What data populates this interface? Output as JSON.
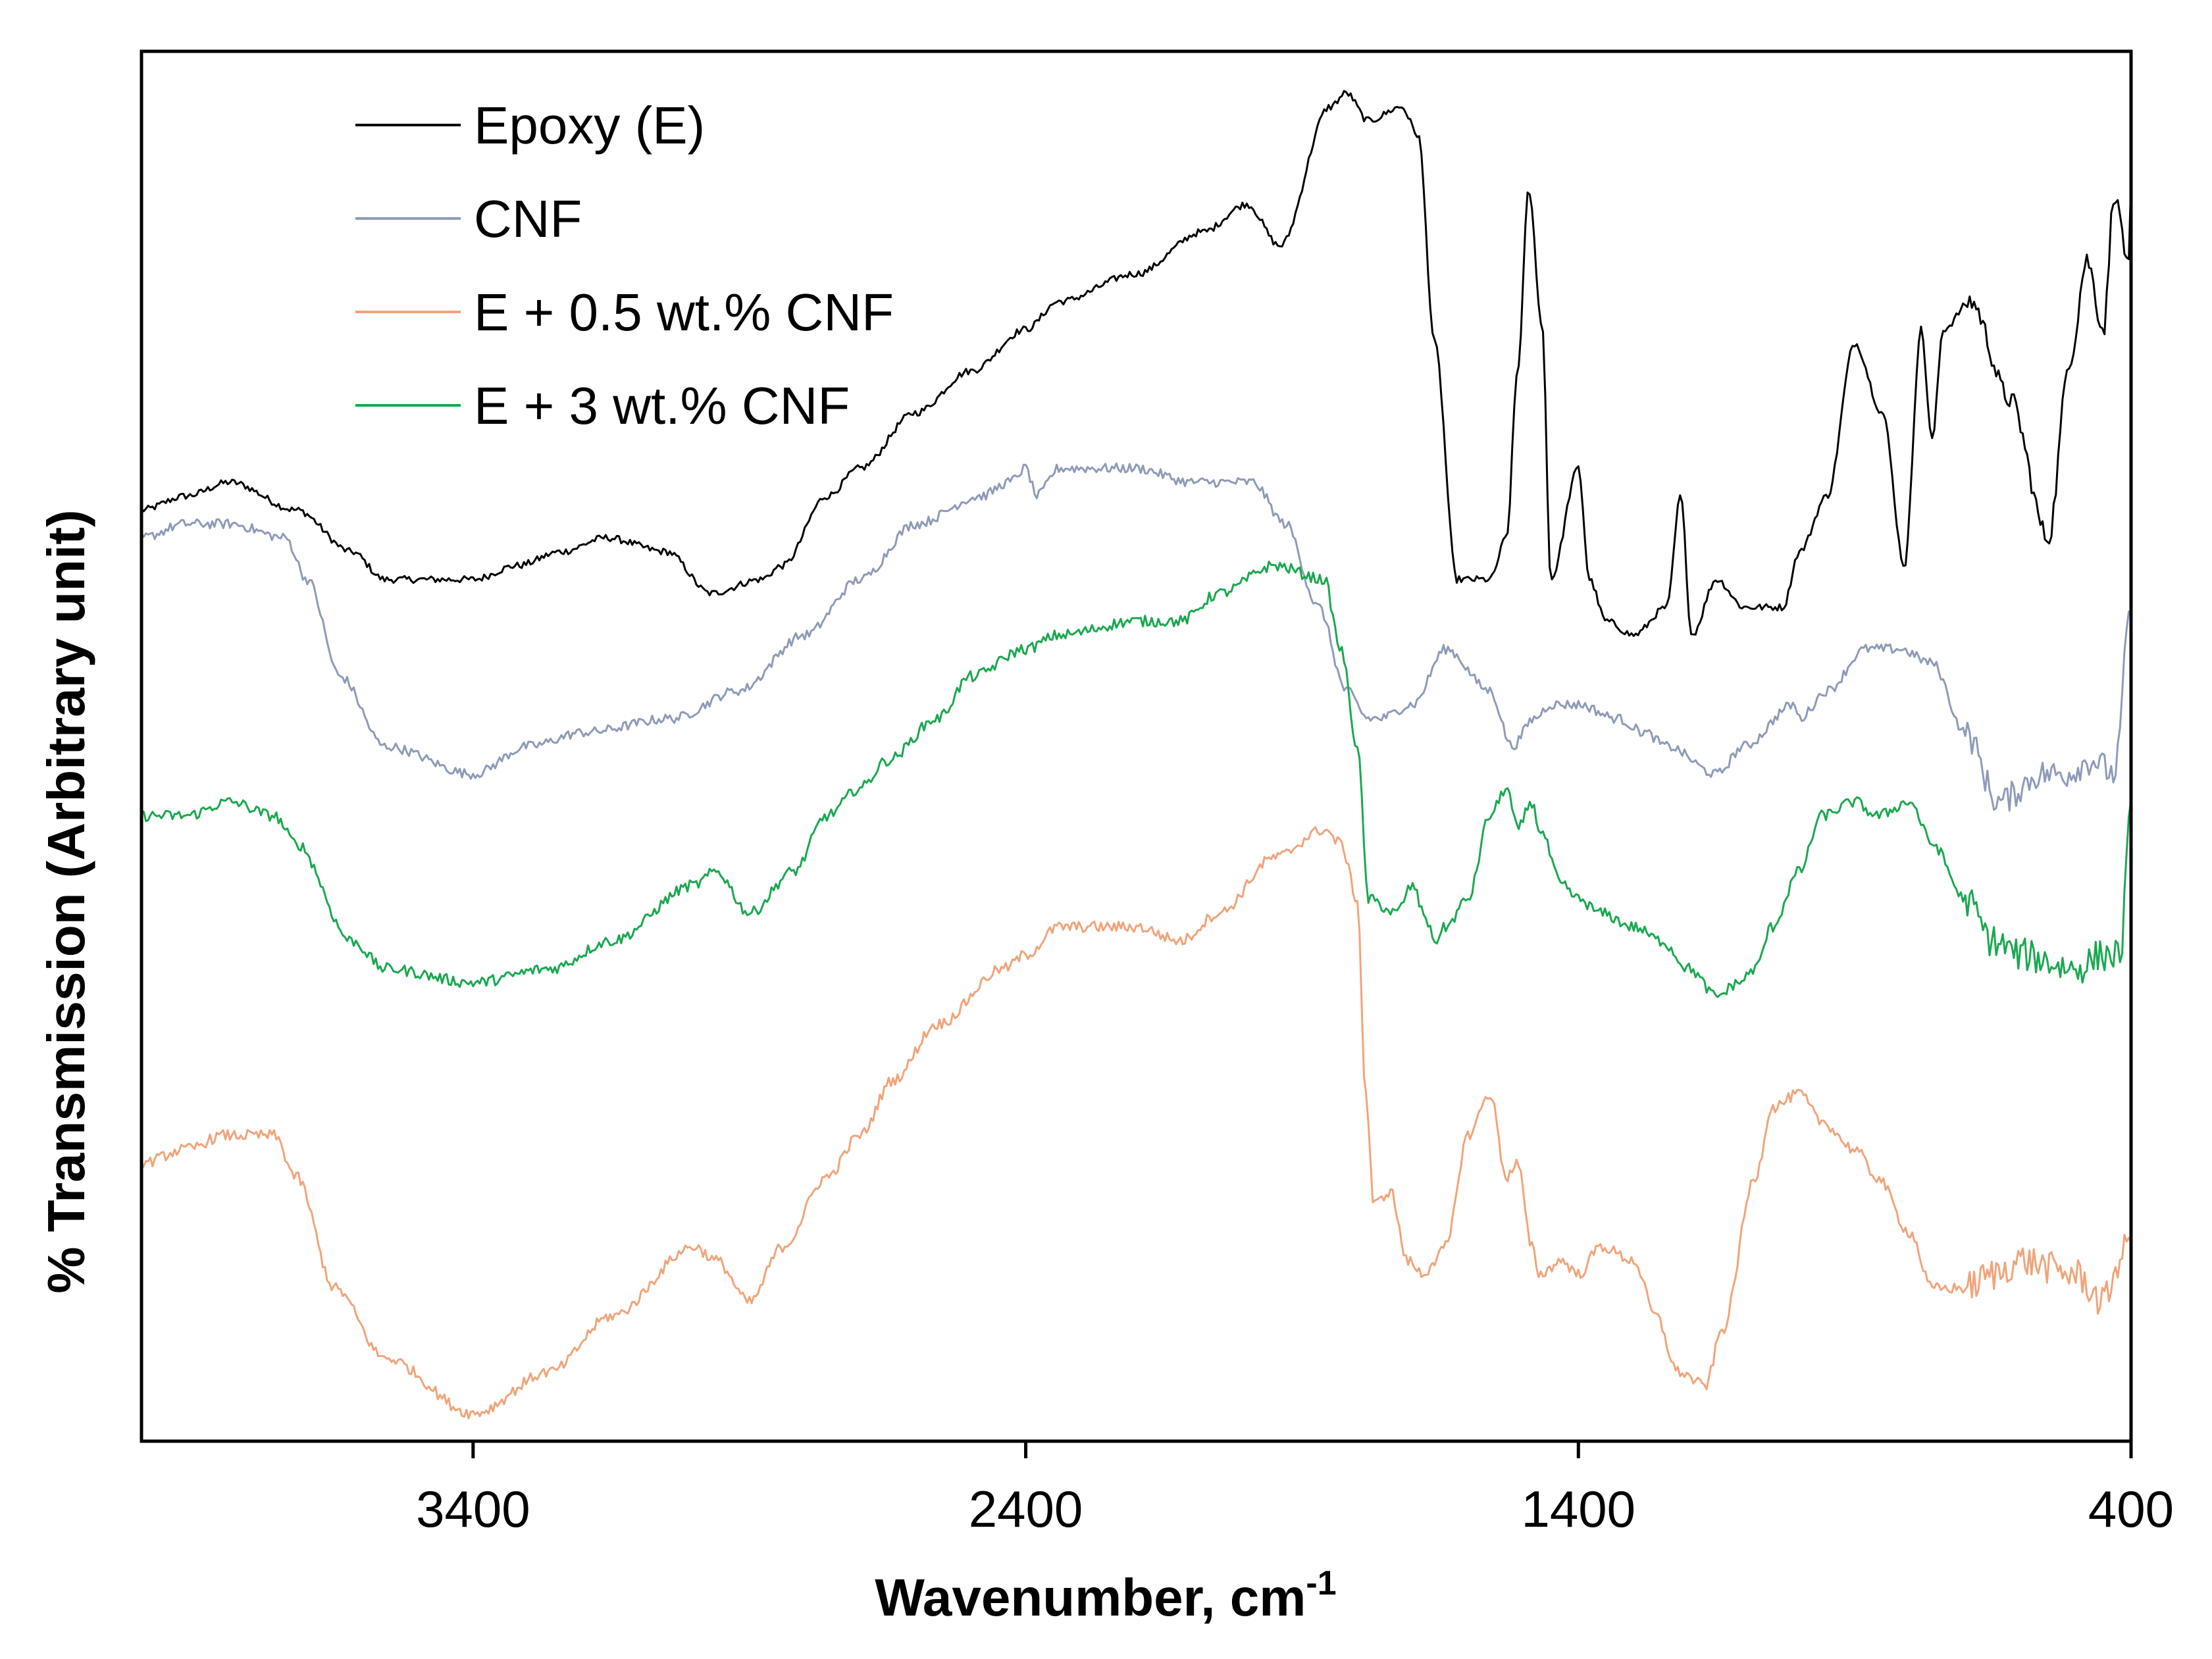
{
  "chart_data": {
    "type": "line",
    "title": "",
    "xlabel": "Wavenumber, cm",
    "xlabel_superscript": "-1",
    "ylabel": "% Transmission (Arbitrary unit)",
    "x_reversed": true,
    "xlim": [
      4000,
      400
    ],
    "ylim": [
      0,
      100
    ],
    "x_ticks": [
      3400,
      2400,
      1400,
      400
    ],
    "x_tick_labels": [
      "3400",
      "2400",
      "1400",
      "400"
    ],
    "y_ticks_shown": false,
    "grid": false,
    "legend_position": "top-left",
    "series": [
      {
        "name": "Epoxy (E)",
        "color": "#000000",
        "noise": 0.25,
        "x": [
          4000,
          3920,
          3840,
          3720,
          3620,
          3560,
          3480,
          3400,
          3320,
          3240,
          3160,
          3050,
          2970,
          2880,
          2840,
          2760,
          2700,
          2600,
          2500,
          2400,
          2340,
          2200,
          2080,
          2000,
          1940,
          1850,
          1820,
          1780,
          1720,
          1690,
          1660,
          1620,
          1560,
          1530,
          1510,
          1490,
          1465,
          1450,
          1400,
          1380,
          1350,
          1300,
          1240,
          1215,
          1195,
          1150,
          1100,
          1030,
          1000,
          950,
          900,
          850,
          810,
          780,
          760,
          740,
          690,
          620,
          550,
          510,
          480,
          450,
          430,
          420,
          405,
          400
        ],
        "y": [
          67,
          68,
          69,
          67,
          64,
          62,
          62,
          62,
          63,
          64,
          65,
          64,
          61,
          62,
          63,
          68,
          70,
          74,
          77,
          80,
          82,
          84,
          87,
          89,
          86,
          96,
          97,
          95,
          96,
          94,
          79,
          62,
          62,
          65,
          77,
          90,
          80,
          62,
          70,
          62,
          59,
          58,
          60,
          68,
          58,
          62,
          60,
          60,
          64,
          68,
          79,
          74,
          63,
          80,
          72,
          80,
          82,
          75,
          65,
          78,
          85,
          80,
          90,
          88,
          84,
          90
        ]
      },
      {
        "name": "CNF",
        "color": "#8e9bb8",
        "noise": 0.35,
        "x": [
          4000,
          3920,
          3840,
          3740,
          3700,
          3640,
          3560,
          3400,
          3300,
          3200,
          3040,
          2920,
          2800,
          2700,
          2600,
          2480,
          2430,
          2400,
          2380,
          2340,
          2300,
          2200,
          2100,
          1990,
          1930,
          1870,
          1820,
          1780,
          1760,
          1700,
          1640,
          1560,
          1520,
          1480,
          1450,
          1400,
          1330,
          1280,
          1240,
          1150,
          1100,
          1010,
          1000,
          950,
          880,
          820,
          760,
          700,
          640,
          560,
          520,
          470,
          430,
          400
        ],
        "y": [
          65,
          66,
          66,
          65,
          62,
          55,
          50,
          48,
          50,
          51,
          52,
          54,
          58,
          62,
          66,
          68,
          69,
          70,
          68,
          70,
          70,
          70,
          69,
          69,
          66,
          60,
          54,
          52,
          52,
          53,
          57,
          54,
          50,
          52,
          53,
          53,
          52,
          51,
          50,
          48,
          50,
          53,
          52,
          54,
          57,
          57,
          56,
          51,
          46,
          48,
          48,
          49,
          48,
          60
        ]
      },
      {
        "name": "E + 3 wt.% CNF",
        "color": "#1aa850",
        "noise": 0.4,
        "x": [
          4000,
          3920,
          3840,
          3760,
          3720,
          3620,
          3560,
          3400,
          3260,
          3150,
          3000,
          2960,
          2900,
          2820,
          2760,
          2700,
          2650,
          2560,
          2500,
          2400,
          2340,
          2200,
          2120,
          2050,
          1950,
          1860,
          1830,
          1800,
          1780,
          1730,
          1700,
          1680,
          1660,
          1640,
          1600,
          1560,
          1530,
          1510,
          1485,
          1470,
          1430,
          1400,
          1360,
          1300,
          1250,
          1200,
          1150,
          1110,
          1080,
          1050,
          1000,
          960,
          900,
          860,
          800,
          760,
          700,
          650,
          600,
          500,
          450,
          420,
          400
        ],
        "y": [
          45,
          45,
          46,
          45,
          43,
          36,
          34,
          33,
          34,
          36,
          40,
          41,
          38,
          41,
          45,
          47,
          49,
          52,
          55,
          57,
          58,
          59,
          59,
          61,
          63,
          62,
          57,
          50,
          39,
          38,
          40,
          38,
          36,
          37,
          39,
          45,
          47,
          44,
          46,
          44,
          40,
          39,
          38,
          37,
          36,
          34,
          32,
          33,
          34,
          37,
          41,
          45,
          46,
          45,
          46,
          43,
          39,
          36,
          35,
          34,
          35,
          35,
          45
        ]
      },
      {
        "name": "E + 0.5 wt.% CNF",
        "color": "#f0a47a",
        "noise": 0.4,
        "x": [
          4000,
          3920,
          3850,
          3760,
          3720,
          3650,
          3560,
          3400,
          3260,
          3150,
          3000,
          2960,
          2900,
          2840,
          2760,
          2700,
          2640,
          2560,
          2440,
          2400,
          2340,
          2200,
          2120,
          2050,
          1950,
          1860,
          1830,
          1800,
          1785,
          1770,
          1740,
          1710,
          1680,
          1660,
          1640,
          1600,
          1560,
          1530,
          1510,
          1485,
          1470,
          1430,
          1400,
          1360,
          1300,
          1260,
          1220,
          1170,
          1140,
          1080,
          1050,
          1000,
          960,
          900,
          860,
          800,
          760,
          700,
          650,
          600,
          500,
          450,
          420,
          400
        ],
        "y": [
          20,
          21,
          22,
          22,
          19,
          11,
          6,
          2,
          5,
          9,
          14,
          13,
          10,
          14,
          19,
          22,
          26,
          30,
          34,
          35,
          37,
          37,
          36,
          38,
          42,
          44,
          43,
          39,
          25,
          17,
          18,
          13,
          12,
          13,
          14,
          22,
          25,
          19,
          20,
          14,
          12,
          13,
          12,
          14,
          13,
          9,
          5,
          4,
          8,
          19,
          24,
          25,
          23,
          21,
          19,
          15,
          11,
          11,
          12,
          13,
          12,
          10,
          13,
          15
        ]
      }
    ]
  },
  "legend": {
    "entries": [
      "Epoxy (E)",
      "CNF",
      "E + 0.5 wt.% CNF",
      "E + 3 wt.% CNF"
    ],
    "colors": [
      "#000000",
      "#8e9bb8",
      "#f0a47a",
      "#1aa850"
    ]
  }
}
